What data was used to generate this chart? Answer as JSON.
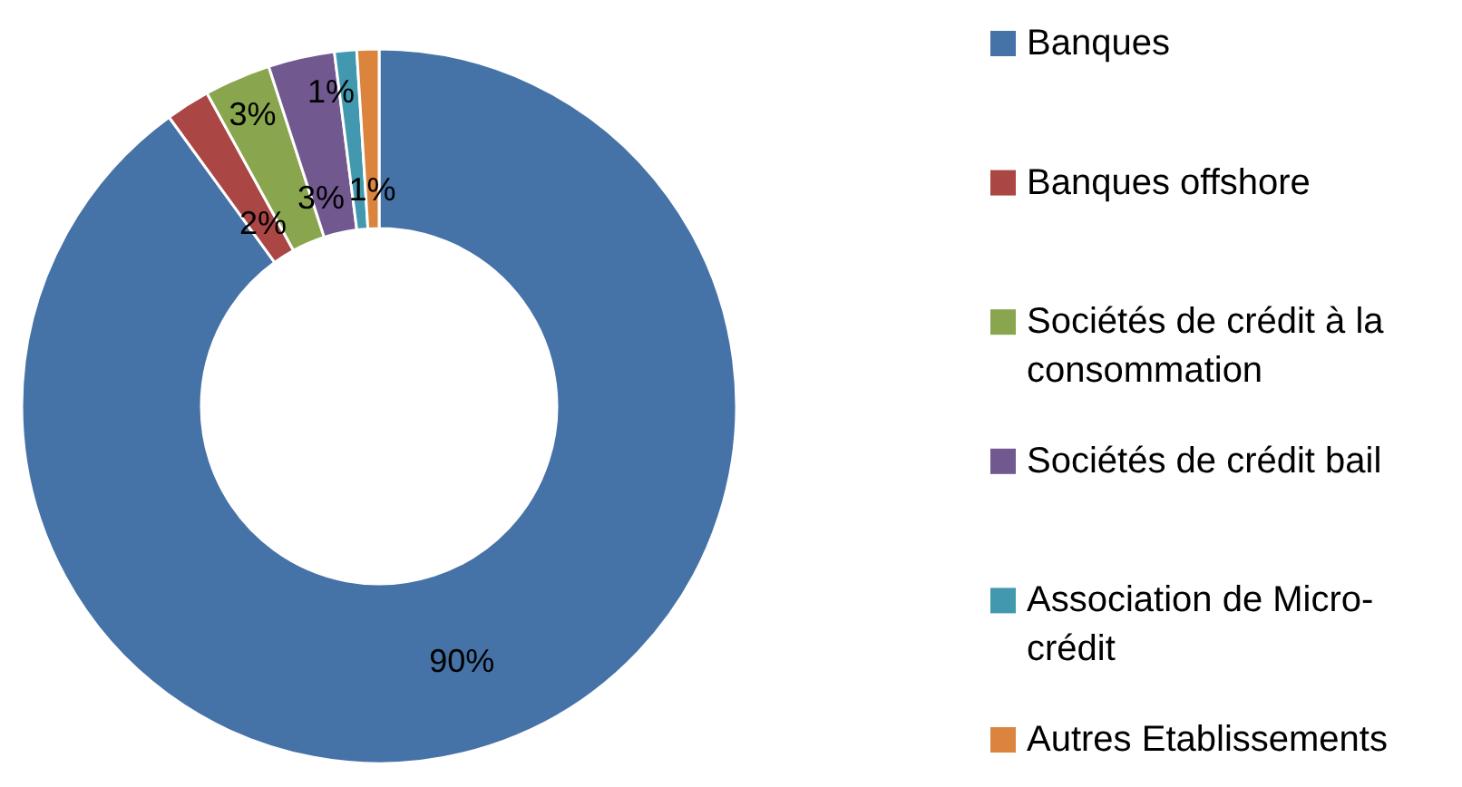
{
  "chart_data": {
    "type": "donut",
    "categories": [
      "Banques",
      "Banques offshore",
      "Sociétés de crédit à la consommation",
      "Sociétés de crédit bail",
      "Association de Micro-crédit",
      "Autres Etablissements"
    ],
    "values": [
      90,
      2,
      3,
      3,
      1,
      1
    ],
    "colors": [
      "#4572a7",
      "#aa4643",
      "#89a54e",
      "#71588f",
      "#4198af",
      "#db843d"
    ],
    "value_labels": [
      "90%",
      "2%",
      "3%",
      "3%",
      "1%",
      "1%"
    ],
    "legend": "right"
  }
}
